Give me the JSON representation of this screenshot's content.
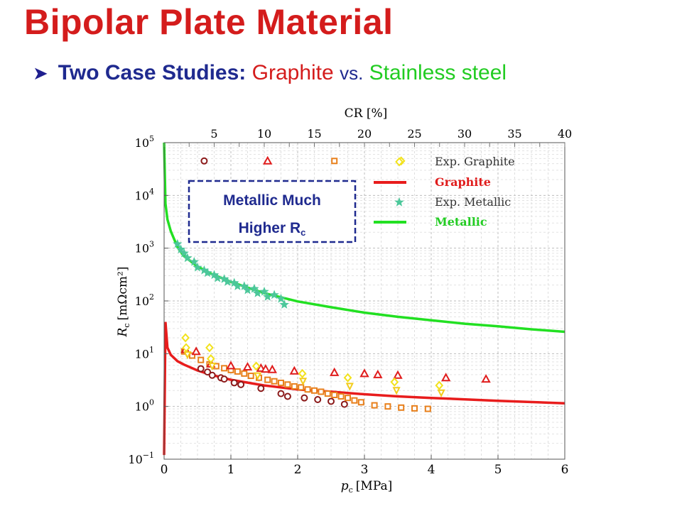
{
  "slide": {
    "title": "Bipolar Plate Material",
    "subtitle_lead": "Two Case Studies:",
    "subtitle_a": "Graphite",
    "subtitle_vs": "vs.",
    "subtitle_b": "Stainless steel",
    "callout_line1": "Metallic Much",
    "callout_line2": "Higher R",
    "callout_sub": "c"
  },
  "colors": {
    "title": "#d41c1c",
    "subtitle": "#1f2a8f",
    "graphite_line": "#e81c1c",
    "metallic_line": "#22e022",
    "metallic_exp": "#4cc79a",
    "callout_border": "#1f2a8f"
  },
  "chart_data": {
    "type": "scatter",
    "xlabel": "p_c [MPa]",
    "xlabel_main": "p",
    "xlabel_sub": "c",
    "xlabel_unit": "[MPa]",
    "x2label": "CR [%]",
    "ylabel_main": "R",
    "ylabel_sub": "c",
    "ylabel_unit": "[mΩcm²]",
    "xlim": [
      0,
      6
    ],
    "x_ticks": [
      0,
      1,
      2,
      3,
      4,
      5,
      6
    ],
    "x2_ticks": [
      5,
      10,
      15,
      20,
      25,
      30,
      35,
      40
    ],
    "y_scale": "log",
    "ylim": [
      0.1,
      100000
    ],
    "y_ticks": [
      "10^-1",
      "10^0",
      "10^1",
      "10^2",
      "10^3",
      "10^4",
      "10^5"
    ],
    "grid": true,
    "legend": [
      {
        "label": "Exp. Graphite",
        "kind": "markers"
      },
      {
        "label": "Graphite",
        "kind": "line"
      },
      {
        "label": "Exp. Metallic",
        "kind": "star"
      },
      {
        "label": "Metallic",
        "kind": "line"
      }
    ],
    "series": [
      {
        "name": "Graphite",
        "kind": "line",
        "x": [
          0.02,
          0.05,
          0.1,
          0.2,
          0.3,
          0.5,
          0.7,
          1.0,
          1.5,
          2.0,
          2.5,
          3.0,
          3.5,
          4.0,
          5.0,
          6.0
        ],
        "y": [
          40,
          13,
          9.5,
          7.2,
          6.2,
          4.8,
          4.0,
          3.2,
          2.5,
          2.1,
          1.9,
          1.7,
          1.55,
          1.45,
          1.28,
          1.15
        ]
      },
      {
        "name": "Metallic",
        "kind": "line",
        "x": [
          0.02,
          0.05,
          0.1,
          0.2,
          0.3,
          0.5,
          0.7,
          1.0,
          1.5,
          2.0,
          2.5,
          3.0,
          3.5,
          4.0,
          4.5,
          5.0,
          5.5,
          6.0
        ],
        "y": [
          7000,
          3500,
          2100,
          1050,
          700,
          450,
          330,
          230,
          140,
          98,
          76,
          60,
          50,
          43,
          37,
          33,
          29,
          26
        ]
      },
      {
        "name": "Exp. Metallic",
        "kind": "star",
        "x": [
          0.2,
          0.25,
          0.3,
          0.35,
          0.45,
          0.5,
          0.6,
          0.65,
          0.75,
          0.8,
          0.9,
          0.95,
          1.05,
          1.1,
          1.2,
          1.25,
          1.35,
          1.4,
          1.5,
          1.55,
          1.65,
          1.75,
          1.8
        ],
        "y": [
          1200,
          950,
          800,
          650,
          550,
          430,
          380,
          340,
          310,
          270,
          260,
          230,
          220,
          190,
          190,
          160,
          170,
          140,
          150,
          120,
          130,
          110,
          85
        ]
      },
      {
        "name": "Exp. Graphite (circles)",
        "kind": "circle",
        "x": [
          0.55,
          0.65,
          0.72,
          0.85,
          0.9,
          1.05,
          1.15,
          1.45,
          1.75,
          1.85,
          2.1,
          2.3,
          2.5,
          2.7
        ],
        "y": [
          5.2,
          4.5,
          3.9,
          3.5,
          3.3,
          2.8,
          2.6,
          2.2,
          1.75,
          1.55,
          1.45,
          1.35,
          1.25,
          1.1
        ]
      },
      {
        "name": "Exp. Graphite (squares)",
        "kind": "square",
        "x": [
          0.3,
          0.42,
          0.55,
          0.68,
          0.78,
          0.9,
          1.0,
          1.1,
          1.2,
          1.3,
          1.42,
          1.55,
          1.65,
          1.75,
          1.85,
          1.95,
          2.05,
          2.15,
          2.25,
          2.35,
          2.45,
          2.55,
          2.65,
          2.75,
          2.85,
          2.95,
          3.15,
          3.35,
          3.55,
          3.75,
          3.95
        ],
        "y": [
          11,
          9.2,
          7.6,
          6.3,
          5.8,
          5.3,
          4.9,
          4.6,
          4.2,
          3.8,
          3.5,
          3.2,
          3.0,
          2.8,
          2.6,
          2.4,
          2.3,
          2.1,
          2.0,
          1.9,
          1.75,
          1.65,
          1.55,
          1.45,
          1.3,
          1.2,
          1.05,
          1.0,
          0.95,
          0.92,
          0.9
        ]
      },
      {
        "name": "Exp. Graphite (triangles)",
        "kind": "triangle",
        "x": [
          0.32,
          0.48,
          0.7,
          1.0,
          1.25,
          1.45,
          1.52,
          1.62,
          1.95,
          2.55,
          3.0,
          3.2,
          3.5,
          4.22,
          4.82
        ],
        "y": [
          12,
          11,
          6.4,
          5.9,
          5.6,
          5.3,
          5.1,
          5.0,
          4.7,
          4.4,
          4.2,
          4.0,
          3.9,
          3.5,
          3.3
        ]
      },
      {
        "name": "Exp. Graphite (diamonds)",
        "kind": "diamond",
        "x": [
          0.32,
          0.33,
          0.68,
          0.7,
          1.38,
          2.07,
          2.75,
          3.45,
          4.12
        ],
        "y": [
          20,
          13,
          13,
          8,
          5.8,
          4.2,
          3.5,
          2.9,
          2.5
        ]
      },
      {
        "name": "Exp. Graphite (wedges)",
        "kind": "wedge",
        "x": [
          0.35,
          0.72,
          1.4,
          2.08,
          2.78,
          3.48,
          4.15
        ],
        "y": [
          9.5,
          5.8,
          3.8,
          3.0,
          2.4,
          2.0,
          1.8
        ]
      },
      {
        "name": "Exp. Graphite (top row)",
        "kind": "mixed",
        "x": [
          0.6,
          1.55,
          2.55,
          3.55
        ],
        "y": [
          45000,
          45000,
          45000,
          45000
        ],
        "markers": [
          "circle",
          "triangle",
          "square",
          "diamond"
        ]
      }
    ]
  }
}
